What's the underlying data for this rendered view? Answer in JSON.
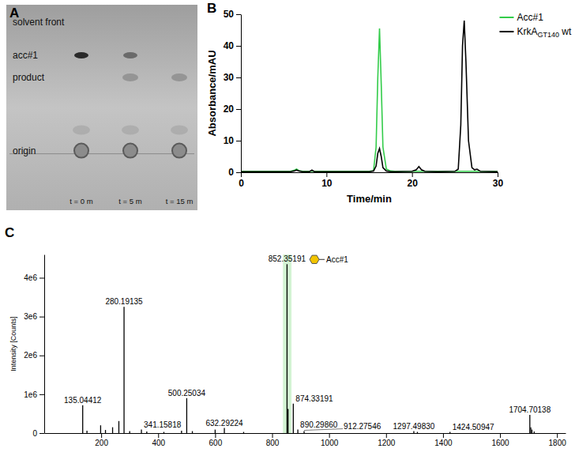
{
  "chart_data": [
    {
      "panel": "B",
      "type": "line",
      "x_label": "Time/min",
      "y_label": "Absorbance/mAU",
      "x": [
        0,
        2,
        4,
        5.8,
        6.2,
        6.5,
        6.8,
        7.2,
        8,
        8.3,
        8.6,
        10,
        12,
        14,
        15,
        15.5,
        15.8,
        16,
        16.2,
        16.4,
        16.6,
        17,
        17.5,
        18,
        20,
        20.5,
        20.8,
        21.1,
        21.5,
        23,
        25,
        25.4,
        25.7,
        25.9,
        26.1,
        26.3,
        26.6,
        27,
        27.3,
        27.6,
        28,
        30
      ],
      "series": [
        {
          "name": "Acc#1",
          "color": "#33cc4a",
          "values": [
            0.3,
            0.3,
            0.3,
            0.3,
            0.6,
            1.0,
            0.5,
            0.3,
            0.3,
            0.3,
            0.3,
            0.3,
            0.3,
            0.3,
            0.3,
            0.5,
            8,
            30,
            45.5,
            28,
            8,
            1,
            0.4,
            0.3,
            0.3,
            0.3,
            0.3,
            0.3,
            0.3,
            0.3,
            0.3,
            0.3,
            0.3,
            0.3,
            0.3,
            0.3,
            0.3,
            0.3,
            0.3,
            0.3,
            0.3,
            0.3
          ]
        },
        {
          "name": "KrkAGT140 wt",
          "color": "#000000",
          "values": [
            0.2,
            0.2,
            0.2,
            0.2,
            0.4,
            0.7,
            0.4,
            0.2,
            0.2,
            0.7,
            0.2,
            0.2,
            0.2,
            0.2,
            0.2,
            0.4,
            2,
            6,
            7.5,
            5,
            1.5,
            0.4,
            0.2,
            0.2,
            0.3,
            0.8,
            1.8,
            0.8,
            0.3,
            0.2,
            0.3,
            1,
            15,
            40,
            48,
            35,
            10,
            1.5,
            0.8,
            1,
            0.3,
            0.2
          ]
        }
      ],
      "xlim": [
        0,
        30
      ],
      "xticks": [
        0,
        10,
        20,
        30
      ],
      "ylim": [
        0,
        50
      ],
      "yticks": [
        0,
        10,
        20,
        30,
        40,
        50
      ],
      "legend": "upper right"
    },
    {
      "panel": "C",
      "type": "stick",
      "y_label": "Intensity [Counts]",
      "color": "#000000",
      "x": [
        135.04412,
        150,
        198,
        215,
        240,
        262,
        280.19135,
        300,
        341.15818,
        360,
        420,
        482,
        500.25034,
        520,
        600,
        632.29224,
        700,
        852.35191,
        856,
        874.33191,
        890.2986,
        912.27546,
        1297.4983,
        1310,
        1424.50947,
        1704.70138,
        1708,
        1712,
        1720
      ],
      "values": [
        720000,
        60000,
        200000,
        80000,
        150000,
        310000,
        3250000,
        50000,
        90000,
        40000,
        30000,
        60000,
        900000,
        50000,
        90000,
        130000,
        30000,
        4350000,
        620000,
        760000,
        90000,
        50000,
        50000,
        30000,
        30000,
        470000,
        150000,
        90000,
        40000
      ],
      "peak_labels": [
        "135.04412",
        null,
        null,
        null,
        null,
        null,
        "280.19135",
        null,
        "341.15818",
        null,
        null,
        null,
        "500.25034",
        null,
        null,
        "632.29224",
        null,
        "852.35191",
        null,
        "874.33191",
        "890.29860",
        "912.27546",
        "1297.49830",
        null,
        "1424.50947",
        "1704.70138",
        null,
        null,
        null
      ],
      "highlight": {
        "range": [
          838,
          868
        ],
        "label": "Acc#1",
        "color": "#c8f0c8"
      },
      "xlim": [
        0,
        1830
      ],
      "xticks": [
        200,
        400,
        600,
        800,
        1000,
        1200,
        1400,
        1600,
        1800
      ],
      "ylim": [
        0,
        4600000
      ],
      "yticks": [
        0,
        {
          "value": 1000000,
          "label": "1e6"
        },
        {
          "value": 2000000,
          "label": "2e6"
        },
        {
          "value": 3000000,
          "label": "3e6"
        },
        {
          "value": 4000000,
          "label": "4e6"
        }
      ]
    }
  ],
  "tlc": {
    "panel": "A",
    "rows": [
      "solvent front",
      "acc#1",
      "product",
      "origin"
    ],
    "lanes": [
      {
        "label": "t = 0 m",
        "spots": [
          "acc#1",
          "origin"
        ]
      },
      {
        "label": "t = 5 m",
        "spots": [
          "acc#1",
          "product",
          "origin"
        ]
      },
      {
        "label": "t = 15 m",
        "spots": [
          "product",
          "origin"
        ]
      }
    ]
  }
}
